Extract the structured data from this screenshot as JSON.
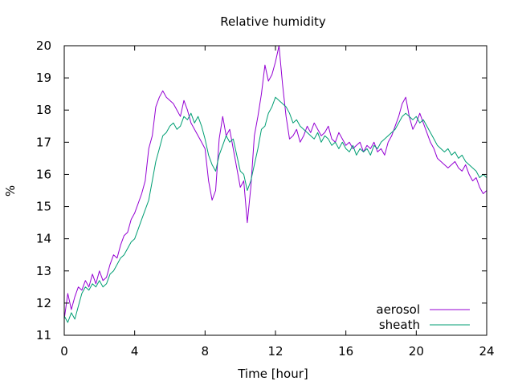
{
  "chart_data": {
    "type": "line",
    "title": "Relative humidity",
    "xlabel": "Time [hour]",
    "ylabel": "%",
    "xlim": [
      0,
      24
    ],
    "ylim": [
      11,
      20
    ],
    "xticks": [
      0,
      4,
      8,
      12,
      16,
      20,
      24
    ],
    "yticks": [
      11,
      12,
      13,
      14,
      15,
      16,
      17,
      18,
      19,
      20
    ],
    "grid": false,
    "legend_position": "bottom-right",
    "series": [
      {
        "name": "aerosol",
        "color": "#9400d3",
        "points": [
          [
            0.0,
            11.5
          ],
          [
            0.2,
            12.3
          ],
          [
            0.4,
            11.8
          ],
          [
            0.6,
            12.2
          ],
          [
            0.8,
            12.5
          ],
          [
            1.0,
            12.4
          ],
          [
            1.2,
            12.7
          ],
          [
            1.4,
            12.5
          ],
          [
            1.6,
            12.9
          ],
          [
            1.8,
            12.6
          ],
          [
            2.0,
            13.0
          ],
          [
            2.2,
            12.7
          ],
          [
            2.4,
            12.8
          ],
          [
            2.6,
            13.2
          ],
          [
            2.8,
            13.5
          ],
          [
            3.0,
            13.4
          ],
          [
            3.2,
            13.8
          ],
          [
            3.4,
            14.1
          ],
          [
            3.6,
            14.2
          ],
          [
            3.8,
            14.6
          ],
          [
            4.0,
            14.8
          ],
          [
            4.2,
            15.1
          ],
          [
            4.4,
            15.4
          ],
          [
            4.6,
            15.8
          ],
          [
            4.8,
            16.8
          ],
          [
            5.0,
            17.2
          ],
          [
            5.2,
            18.1
          ],
          [
            5.4,
            18.4
          ],
          [
            5.6,
            18.6
          ],
          [
            5.8,
            18.4
          ],
          [
            6.0,
            18.3
          ],
          [
            6.2,
            18.2
          ],
          [
            6.4,
            18.0
          ],
          [
            6.6,
            17.8
          ],
          [
            6.8,
            18.3
          ],
          [
            7.0,
            18.0
          ],
          [
            7.2,
            17.6
          ],
          [
            7.4,
            17.4
          ],
          [
            7.6,
            17.2
          ],
          [
            7.8,
            17.0
          ],
          [
            8.0,
            16.8
          ],
          [
            8.2,
            15.8
          ],
          [
            8.4,
            15.2
          ],
          [
            8.6,
            15.5
          ],
          [
            8.8,
            17.1
          ],
          [
            9.0,
            17.8
          ],
          [
            9.2,
            17.2
          ],
          [
            9.4,
            17.4
          ],
          [
            9.6,
            16.8
          ],
          [
            9.8,
            16.2
          ],
          [
            10.0,
            15.6
          ],
          [
            10.2,
            15.8
          ],
          [
            10.4,
            14.5
          ],
          [
            10.6,
            15.6
          ],
          [
            10.8,
            17.2
          ],
          [
            11.0,
            17.8
          ],
          [
            11.2,
            18.5
          ],
          [
            11.4,
            19.4
          ],
          [
            11.6,
            18.9
          ],
          [
            11.8,
            19.1
          ],
          [
            12.0,
            19.5
          ],
          [
            12.2,
            20.0
          ],
          [
            12.4,
            18.8
          ],
          [
            12.6,
            17.8
          ],
          [
            12.8,
            17.1
          ],
          [
            13.0,
            17.2
          ],
          [
            13.2,
            17.4
          ],
          [
            13.4,
            17.0
          ],
          [
            13.6,
            17.2
          ],
          [
            13.8,
            17.5
          ],
          [
            14.0,
            17.3
          ],
          [
            14.2,
            17.6
          ],
          [
            14.4,
            17.4
          ],
          [
            14.6,
            17.2
          ],
          [
            14.8,
            17.3
          ],
          [
            15.0,
            17.5
          ],
          [
            15.2,
            17.1
          ],
          [
            15.4,
            17.0
          ],
          [
            15.6,
            17.3
          ],
          [
            15.8,
            17.1
          ],
          [
            16.0,
            16.9
          ],
          [
            16.2,
            17.0
          ],
          [
            16.4,
            16.8
          ],
          [
            16.6,
            16.9
          ],
          [
            16.8,
            17.0
          ],
          [
            17.0,
            16.7
          ],
          [
            17.2,
            16.9
          ],
          [
            17.4,
            16.8
          ],
          [
            17.6,
            17.0
          ],
          [
            17.8,
            16.7
          ],
          [
            18.0,
            16.8
          ],
          [
            18.2,
            16.6
          ],
          [
            18.4,
            17.0
          ],
          [
            18.6,
            17.2
          ],
          [
            18.8,
            17.5
          ],
          [
            19.0,
            17.8
          ],
          [
            19.2,
            18.2
          ],
          [
            19.4,
            18.4
          ],
          [
            19.6,
            17.8
          ],
          [
            19.8,
            17.4
          ],
          [
            20.0,
            17.6
          ],
          [
            20.2,
            17.9
          ],
          [
            20.4,
            17.6
          ],
          [
            20.6,
            17.3
          ],
          [
            20.8,
            17.0
          ],
          [
            21.0,
            16.8
          ],
          [
            21.2,
            16.5
          ],
          [
            21.4,
            16.4
          ],
          [
            21.6,
            16.3
          ],
          [
            21.8,
            16.2
          ],
          [
            22.0,
            16.3
          ],
          [
            22.2,
            16.4
          ],
          [
            22.4,
            16.2
          ],
          [
            22.6,
            16.1
          ],
          [
            22.8,
            16.3
          ],
          [
            23.0,
            16.0
          ],
          [
            23.2,
            15.8
          ],
          [
            23.4,
            15.9
          ],
          [
            23.6,
            15.6
          ],
          [
            23.8,
            15.4
          ],
          [
            24.0,
            15.5
          ]
        ]
      },
      {
        "name": "sheath",
        "color": "#009e73",
        "points": [
          [
            0.0,
            11.6
          ],
          [
            0.2,
            11.4
          ],
          [
            0.4,
            11.7
          ],
          [
            0.6,
            11.5
          ],
          [
            0.8,
            11.9
          ],
          [
            1.0,
            12.3
          ],
          [
            1.2,
            12.5
          ],
          [
            1.4,
            12.4
          ],
          [
            1.6,
            12.6
          ],
          [
            1.8,
            12.5
          ],
          [
            2.0,
            12.7
          ],
          [
            2.2,
            12.5
          ],
          [
            2.4,
            12.6
          ],
          [
            2.6,
            12.9
          ],
          [
            2.8,
            13.0
          ],
          [
            3.0,
            13.2
          ],
          [
            3.2,
            13.4
          ],
          [
            3.4,
            13.5
          ],
          [
            3.6,
            13.7
          ],
          [
            3.8,
            13.9
          ],
          [
            4.0,
            14.0
          ],
          [
            4.2,
            14.3
          ],
          [
            4.4,
            14.6
          ],
          [
            4.6,
            14.9
          ],
          [
            4.8,
            15.2
          ],
          [
            5.0,
            15.8
          ],
          [
            5.2,
            16.4
          ],
          [
            5.4,
            16.8
          ],
          [
            5.6,
            17.2
          ],
          [
            5.8,
            17.3
          ],
          [
            6.0,
            17.5
          ],
          [
            6.2,
            17.6
          ],
          [
            6.4,
            17.4
          ],
          [
            6.6,
            17.5
          ],
          [
            6.8,
            17.8
          ],
          [
            7.0,
            17.7
          ],
          [
            7.2,
            17.9
          ],
          [
            7.4,
            17.6
          ],
          [
            7.6,
            17.8
          ],
          [
            7.8,
            17.5
          ],
          [
            8.0,
            17.1
          ],
          [
            8.2,
            16.6
          ],
          [
            8.4,
            16.3
          ],
          [
            8.6,
            16.1
          ],
          [
            8.8,
            16.6
          ],
          [
            9.0,
            16.9
          ],
          [
            9.2,
            17.2
          ],
          [
            9.4,
            17.0
          ],
          [
            9.6,
            17.1
          ],
          [
            9.8,
            16.6
          ],
          [
            10.0,
            16.1
          ],
          [
            10.2,
            16.0
          ],
          [
            10.4,
            15.5
          ],
          [
            10.6,
            15.8
          ],
          [
            10.8,
            16.3
          ],
          [
            11.0,
            16.8
          ],
          [
            11.2,
            17.4
          ],
          [
            11.4,
            17.5
          ],
          [
            11.6,
            17.9
          ],
          [
            11.8,
            18.1
          ],
          [
            12.0,
            18.4
          ],
          [
            12.2,
            18.3
          ],
          [
            12.4,
            18.2
          ],
          [
            12.6,
            18.1
          ],
          [
            12.8,
            17.9
          ],
          [
            13.0,
            17.6
          ],
          [
            13.2,
            17.7
          ],
          [
            13.4,
            17.5
          ],
          [
            13.6,
            17.4
          ],
          [
            13.8,
            17.3
          ],
          [
            14.0,
            17.2
          ],
          [
            14.2,
            17.1
          ],
          [
            14.4,
            17.3
          ],
          [
            14.6,
            17.0
          ],
          [
            14.8,
            17.2
          ],
          [
            15.0,
            17.1
          ],
          [
            15.2,
            16.9
          ],
          [
            15.4,
            17.0
          ],
          [
            15.6,
            16.8
          ],
          [
            15.8,
            17.0
          ],
          [
            16.0,
            16.8
          ],
          [
            16.2,
            16.7
          ],
          [
            16.4,
            16.9
          ],
          [
            16.6,
            16.6
          ],
          [
            16.8,
            16.8
          ],
          [
            17.0,
            16.7
          ],
          [
            17.2,
            16.8
          ],
          [
            17.4,
            16.6
          ],
          [
            17.6,
            16.9
          ],
          [
            17.8,
            16.8
          ],
          [
            18.0,
            17.0
          ],
          [
            18.2,
            17.1
          ],
          [
            18.4,
            17.2
          ],
          [
            18.6,
            17.3
          ],
          [
            18.8,
            17.4
          ],
          [
            19.0,
            17.6
          ],
          [
            19.2,
            17.8
          ],
          [
            19.4,
            17.9
          ],
          [
            19.6,
            17.8
          ],
          [
            19.8,
            17.7
          ],
          [
            20.0,
            17.8
          ],
          [
            20.2,
            17.6
          ],
          [
            20.4,
            17.7
          ],
          [
            20.6,
            17.5
          ],
          [
            20.8,
            17.3
          ],
          [
            21.0,
            17.1
          ],
          [
            21.2,
            16.9
          ],
          [
            21.4,
            16.8
          ],
          [
            21.6,
            16.7
          ],
          [
            21.8,
            16.8
          ],
          [
            22.0,
            16.6
          ],
          [
            22.2,
            16.7
          ],
          [
            22.4,
            16.5
          ],
          [
            22.6,
            16.6
          ],
          [
            22.8,
            16.4
          ],
          [
            23.0,
            16.3
          ],
          [
            23.2,
            16.2
          ],
          [
            23.4,
            16.1
          ],
          [
            23.6,
            15.9
          ],
          [
            23.8,
            16.0
          ],
          [
            24.0,
            15.9
          ]
        ]
      }
    ]
  }
}
